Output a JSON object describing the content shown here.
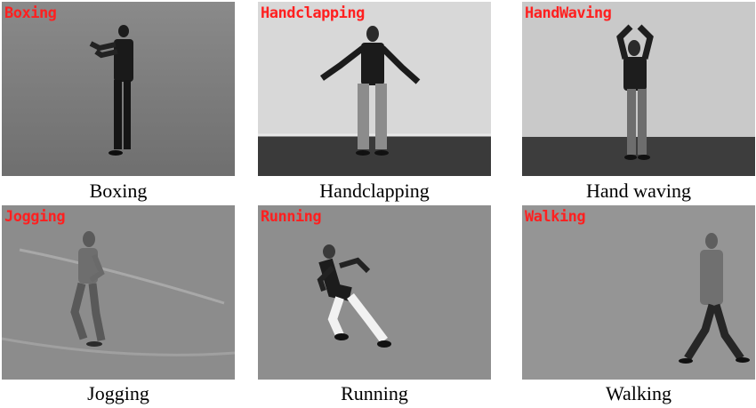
{
  "overlay_color": "#ff2020",
  "frames": [
    {
      "overlay": "Boxing",
      "caption": "Boxing"
    },
    {
      "overlay": "Handclapping",
      "caption": "Handclapping"
    },
    {
      "overlay": "HandWaving",
      "caption": "Hand waving"
    },
    {
      "overlay": "Jogging",
      "caption": "Jogging"
    },
    {
      "overlay": "Running",
      "caption": "Running"
    },
    {
      "overlay": "Walking",
      "caption": "Walking"
    }
  ]
}
